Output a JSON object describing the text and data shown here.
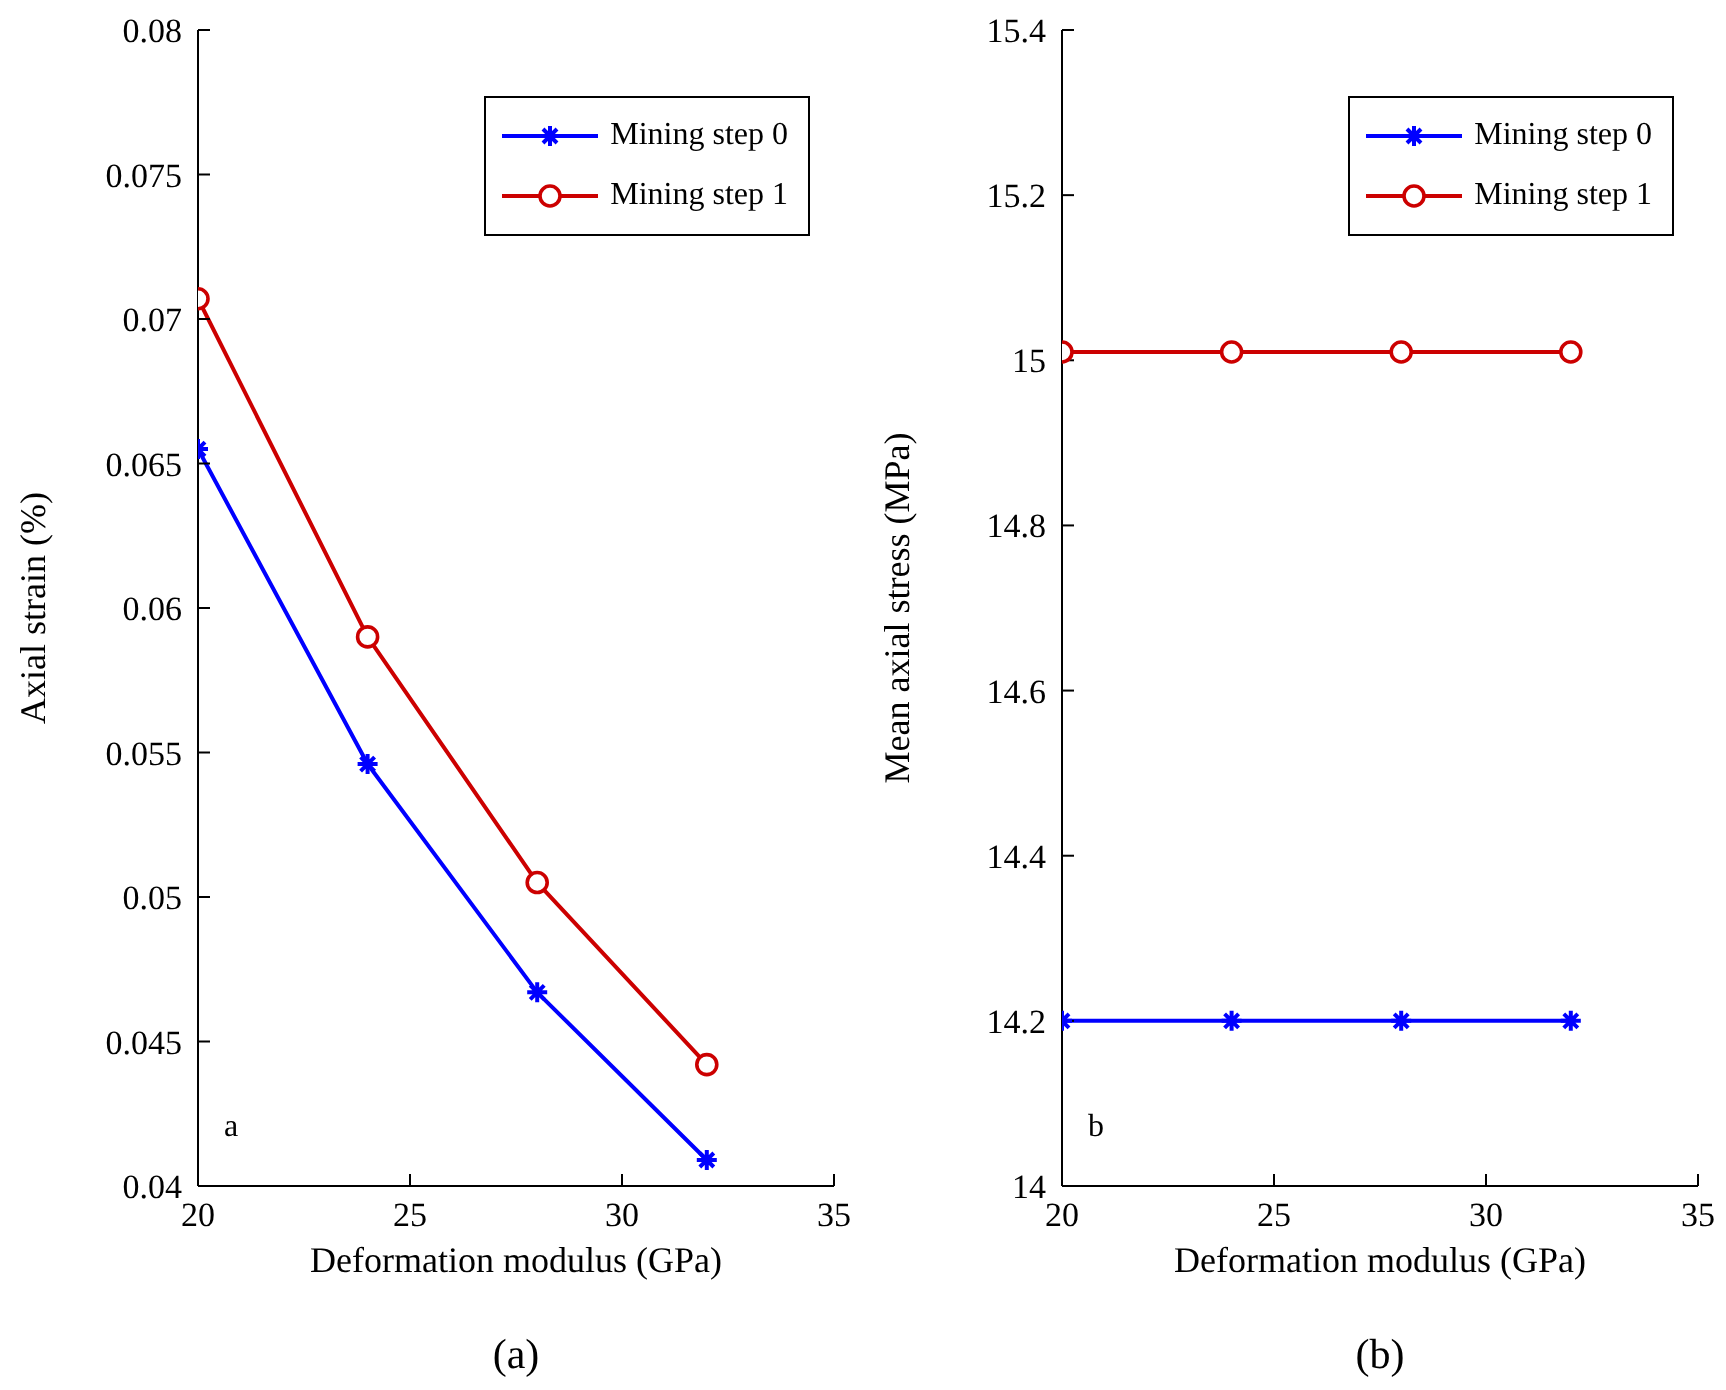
{
  "chart_data": [
    {
      "type": "line",
      "xlabel": "Deformation modulus (GPa)",
      "ylabel": "Axial strain (%)",
      "annotations": [
        "a",
        "(a)"
      ],
      "x": [
        20,
        24,
        28,
        32
      ],
      "xlim": [
        20,
        35
      ],
      "xticks": [
        20,
        25,
        30,
        35
      ],
      "ylim": [
        0.04,
        0.08
      ],
      "yticks": [
        0.04,
        0.045,
        0.05,
        0.055,
        0.06,
        0.065,
        0.07,
        0.075,
        0.08
      ],
      "legend": "top right",
      "grid": false,
      "series": [
        {
          "name": "Mining step 0",
          "color": "#0000ff",
          "marker": "cross",
          "values": [
            0.0655,
            0.0546,
            0.0467,
            0.0409
          ]
        },
        {
          "name": "Mining step 1",
          "color": "#cc0000",
          "marker": "circle",
          "values": [
            0.0707,
            0.059,
            0.0505,
            0.0442
          ]
        }
      ]
    },
    {
      "type": "line",
      "xlabel": "Deformation modulus (GPa)",
      "ylabel": "Mean axial stress (MPa)",
      "annotations": [
        "b",
        "(b)"
      ],
      "x": [
        20,
        24,
        28,
        32
      ],
      "xlim": [
        20,
        35
      ],
      "xticks": [
        20,
        25,
        30,
        35
      ],
      "ylim": [
        14,
        15.4
      ],
      "yticks": [
        14,
        14.2,
        14.4,
        14.6,
        14.8,
        15,
        15.2,
        15.4
      ],
      "legend": "top right",
      "grid": false,
      "series": [
        {
          "name": "Mining step 0",
          "color": "#0000ff",
          "marker": "cross",
          "values": [
            14.2,
            14.2,
            14.2,
            14.2
          ]
        },
        {
          "name": "Mining step 1",
          "color": "#cc0000",
          "marker": "circle",
          "values": [
            15.01,
            15.01,
            15.01,
            15.01
          ]
        }
      ]
    }
  ]
}
